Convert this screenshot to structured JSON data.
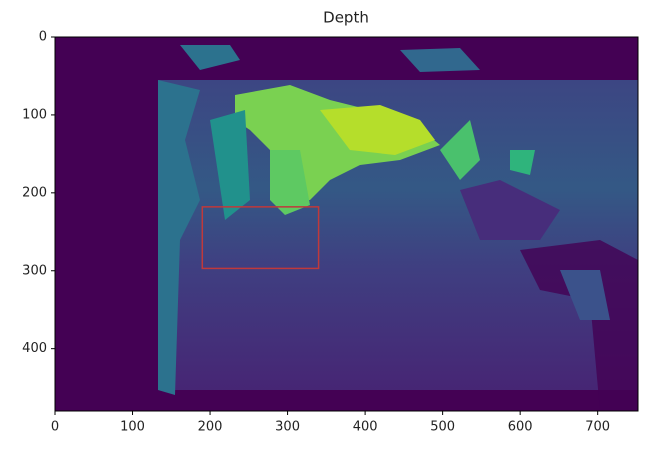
{
  "chart_data": {
    "type": "heatmap",
    "title": "Depth",
    "xlim": [
      0,
      752
    ],
    "ylim": [
      480,
      0
    ],
    "xticks": [
      0,
      100,
      200,
      300,
      400,
      500,
      600,
      700
    ],
    "yticks": [
      0,
      100,
      200,
      300,
      400
    ],
    "box": {
      "x": [
        190,
        340
      ],
      "y": [
        218,
        297
      ],
      "color": "#c0393b"
    }
  }
}
